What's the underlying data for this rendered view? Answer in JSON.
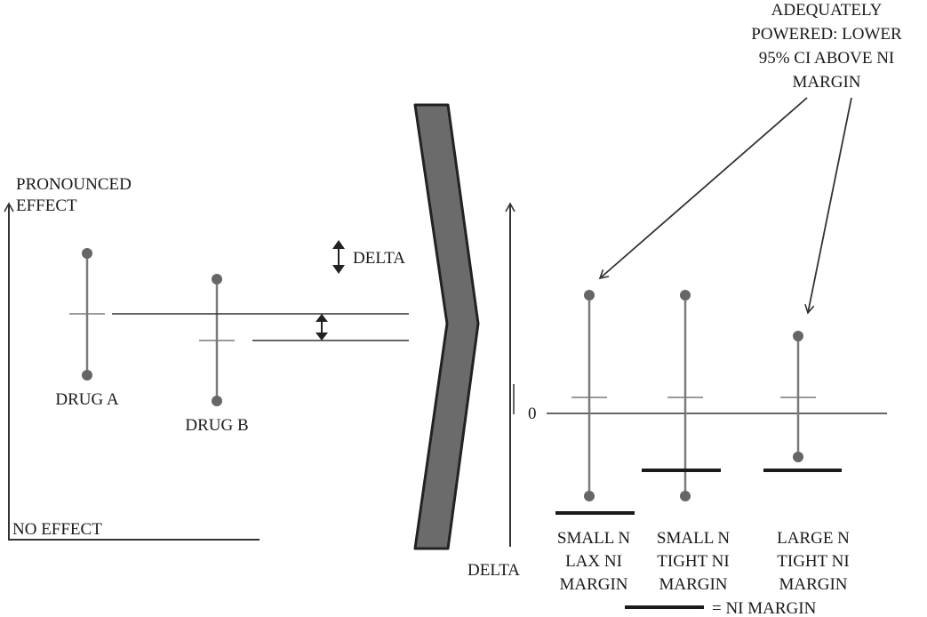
{
  "left_panel": {
    "y_axis_top_label": [
      "PRONOUNCED",
      "EFFECT"
    ],
    "x_axis_label": "NO EFFECT",
    "drugs": [
      {
        "label": "DRUG A"
      },
      {
        "label": "DRUG B"
      }
    ],
    "delta_label": "DELTA"
  },
  "right_panel": {
    "annotation": [
      "ADEQUATELY",
      "POWERED: LOWER",
      "95% CI ABOVE NI",
      "MARGIN"
    ],
    "zero_label": "0",
    "y_axis_label": "DELTA",
    "scenarios": [
      {
        "label": [
          "SMALL N",
          "LAX NI",
          "MARGIN"
        ]
      },
      {
        "label": [
          "SMALL N",
          "TIGHT NI",
          "MARGIN"
        ]
      },
      {
        "label": [
          "LARGE N",
          "TIGHT NI",
          "MARGIN"
        ]
      }
    ],
    "legend_label": "= NI MARGIN"
  },
  "colors": {
    "line": "#333333",
    "ci_line": "#7a7a7a",
    "ci_dot": "#666666",
    "chevron_fill": "#6b6b6b",
    "chevron_stroke": "#222222",
    "margin_bar": "#1a1a1a"
  }
}
